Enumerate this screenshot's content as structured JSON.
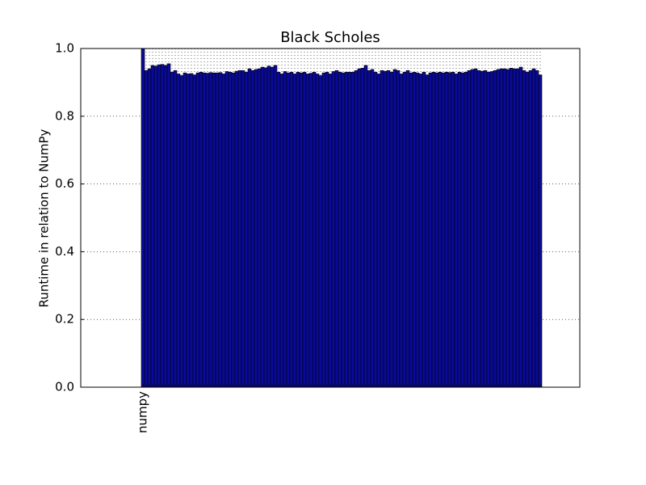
{
  "chart_data": {
    "type": "bar",
    "title": "Black Scholes",
    "ylabel": "Runtime in relation to NumPy",
    "categories": [
      "numpy",
      null,
      null,
      null,
      null,
      null,
      null,
      null,
      null,
      null,
      null,
      null,
      null,
      null,
      null,
      null,
      null,
      null,
      null,
      null,
      null,
      null,
      null,
      null,
      null,
      null,
      null,
      null,
      null,
      null,
      null,
      null,
      null,
      null,
      null,
      null,
      null,
      null,
      null,
      null,
      null,
      null,
      null,
      null,
      null,
      null,
      null,
      null,
      null,
      null,
      null,
      null,
      null,
      null,
      null,
      null,
      null,
      null,
      null,
      null,
      null,
      null,
      null,
      null,
      null,
      null,
      null,
      null,
      null,
      null,
      null,
      null,
      null,
      null,
      null,
      null,
      null,
      null,
      null,
      null,
      null,
      null,
      null,
      null,
      null,
      null,
      null,
      null,
      null,
      null,
      null,
      null,
      null,
      null,
      null,
      null,
      null,
      null,
      null,
      null,
      null,
      null,
      null,
      null,
      null,
      null,
      null,
      null,
      null,
      null,
      null,
      null,
      null,
      null,
      null,
      null,
      null,
      null,
      null,
      null,
      null,
      null,
      null,
      null
    ],
    "values": [
      1.0,
      0.935,
      0.94,
      0.95,
      0.948,
      0.952,
      0.953,
      0.95,
      0.955,
      0.93,
      0.935,
      0.925,
      0.92,
      0.928,
      0.925,
      0.926,
      0.922,
      0.928,
      0.93,
      0.928,
      0.927,
      0.929,
      0.928,
      0.928,
      0.929,
      0.925,
      0.932,
      0.93,
      0.928,
      0.933,
      0.935,
      0.935,
      0.93,
      0.94,
      0.935,
      0.938,
      0.94,
      0.945,
      0.943,
      0.948,
      0.945,
      0.95,
      0.93,
      0.925,
      0.932,
      0.928,
      0.93,
      0.925,
      0.93,
      0.928,
      0.93,
      0.925,
      0.927,
      0.93,
      0.925,
      0.92,
      0.928,
      0.93,
      0.925,
      0.932,
      0.935,
      0.93,
      0.928,
      0.93,
      0.93,
      0.93,
      0.935,
      0.94,
      0.942,
      0.95,
      0.935,
      0.938,
      0.93,
      0.925,
      0.935,
      0.933,
      0.935,
      0.93,
      0.938,
      0.935,
      0.925,
      0.93,
      0.935,
      0.928,
      0.93,
      0.928,
      0.925,
      0.93,
      0.922,
      0.928,
      0.93,
      0.928,
      0.93,
      0.928,
      0.93,
      0.929,
      0.93,
      0.925,
      0.93,
      0.928,
      0.93,
      0.935,
      0.938,
      0.94,
      0.935,
      0.933,
      0.935,
      0.93,
      0.932,
      0.935,
      0.938,
      0.94,
      0.94,
      0.938,
      0.942,
      0.94,
      0.94,
      0.945,
      0.935,
      0.93,
      0.935,
      0.94,
      0.935,
      0.922
    ],
    "color": "#0a0a9a",
    "ylim": [
      0,
      1.0
    ],
    "yticks": [
      {
        "value": 0,
        "label": "0.0"
      },
      0.2,
      0.4,
      0.6,
      0.8,
      {
        "value": 1,
        "label": "1.0"
      }
    ],
    "grid": true
  }
}
